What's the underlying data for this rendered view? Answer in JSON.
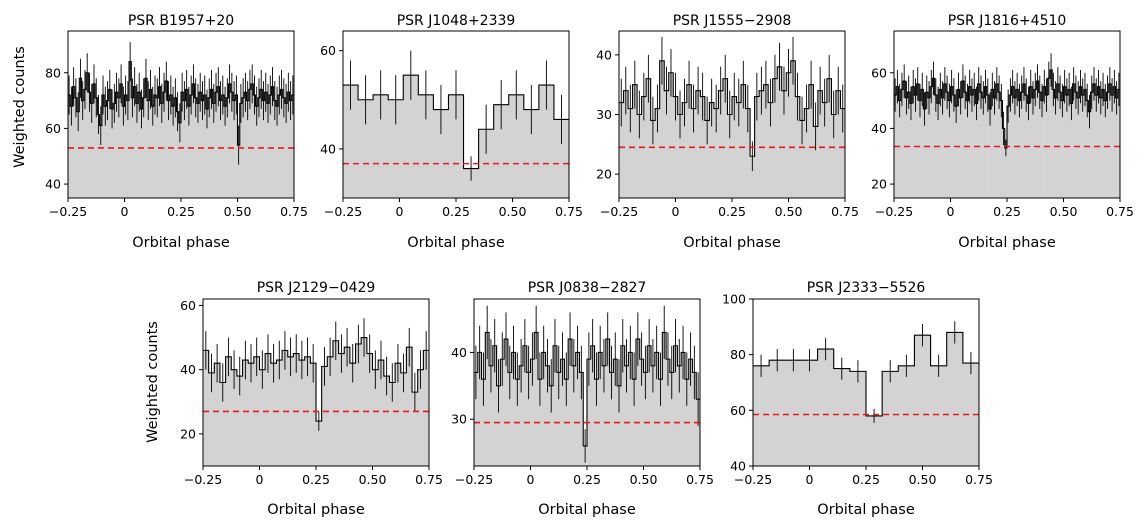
{
  "figure": {
    "ylabel_row1": "Weighted counts",
    "ylabel_row2": "Weighted counts",
    "colors": {
      "fill": "#d3d3d3",
      "step": "#000000",
      "baseline": "#e8191a"
    }
  },
  "chart_data": [
    {
      "type": "histogram",
      "title": "PSR B1957+20",
      "xlabel": "Orbital phase",
      "xlim": [
        -0.25,
        0.75
      ],
      "ylim": [
        35,
        95
      ],
      "xticks": [
        -0.25,
        0,
        0.25,
        0.5,
        0.75
      ],
      "xtick_labels": [
        "−0.25",
        "0",
        "0.25",
        "0.50",
        "0.75"
      ],
      "yticks": [
        40,
        60,
        80
      ],
      "ytick_labels": [
        "40",
        "60",
        "80"
      ],
      "baseline": 53,
      "nbins": 100,
      "values": [
        72,
        68,
        75,
        71,
        66,
        78,
        70,
        74,
        80,
        73,
        69,
        76,
        71,
        65,
        61,
        72,
        68,
        70,
        74,
        67,
        69,
        73,
        71,
        76,
        68,
        72,
        70,
        84,
        71,
        75,
        69,
        73,
        67,
        71,
        78,
        70,
        74,
        68,
        72,
        71,
        75,
        69,
        73,
        77,
        70,
        72,
        68,
        71,
        66,
        62,
        73,
        70,
        74,
        68,
        72,
        76,
        71,
        69,
        73,
        70,
        72,
        67,
        71,
        74,
        69,
        73,
        75,
        70,
        72,
        68,
        71,
        76,
        73,
        70,
        72,
        54,
        69,
        71,
        73,
        70,
        74,
        76,
        72,
        68,
        71,
        74,
        70,
        73,
        69,
        72,
        75,
        70,
        68,
        72,
        74,
        71,
        69,
        73,
        70,
        72
      ],
      "errors": [
        7,
        7,
        7,
        7,
        7,
        7,
        7,
        7,
        7,
        7,
        7,
        7,
        7,
        7,
        7,
        7,
        7,
        7,
        7,
        7,
        7,
        7,
        7,
        7,
        7,
        7,
        7,
        7,
        7,
        7,
        7,
        7,
        7,
        7,
        7,
        7,
        7,
        7,
        7,
        7,
        7,
        7,
        7,
        7,
        7,
        7,
        7,
        7,
        7,
        7,
        7,
        7,
        7,
        7,
        7,
        7,
        7,
        7,
        7,
        7,
        7,
        7,
        7,
        7,
        7,
        7,
        7,
        7,
        7,
        7,
        7,
        7,
        7,
        7,
        7,
        7,
        7,
        7,
        7,
        7,
        7,
        7,
        7,
        7,
        7,
        7,
        7,
        7,
        7,
        7,
        7,
        7,
        7,
        7,
        7,
        7,
        7,
        7,
        7,
        7
      ]
    },
    {
      "type": "histogram",
      "title": "PSR J1048+2339",
      "xlabel": "Orbital phase",
      "xlim": [
        -0.25,
        0.75
      ],
      "ylim": [
        30,
        64
      ],
      "xticks": [
        -0.25,
        0,
        0.25,
        0.5,
        0.75
      ],
      "xtick_labels": [
        "−0.25",
        "0",
        "0.25",
        "0.50",
        "0.75"
      ],
      "yticks": [
        40,
        60
      ],
      "ytick_labels": [
        "40",
        "60"
      ],
      "baseline": 37,
      "nbins": 15,
      "values": [
        53,
        50,
        51,
        50,
        55,
        51,
        48,
        51,
        36,
        44,
        49,
        51,
        48,
        53,
        46
      ],
      "errors": [
        5,
        5,
        5,
        5,
        5,
        5,
        5,
        5,
        2.5,
        5,
        5,
        5,
        5,
        5,
        5
      ]
    },
    {
      "type": "histogram",
      "title": "PSR J1555−2908",
      "xlabel": "Orbital phase",
      "xlim": [
        -0.25,
        0.75
      ],
      "ylim": [
        16,
        44
      ],
      "xticks": [
        -0.25,
        0,
        0.25,
        0.5,
        0.75
      ],
      "xtick_labels": [
        "−0.25",
        "0",
        "0.25",
        "0.50",
        "0.75"
      ],
      "yticks": [
        20,
        30,
        40
      ],
      "ytick_labels": [
        "20",
        "30",
        "40"
      ],
      "baseline": 24.5,
      "nbins": 50,
      "values": [
        32,
        34,
        31,
        35,
        30,
        33,
        36,
        29,
        31,
        39,
        34,
        37,
        33,
        30,
        32,
        35,
        31,
        34,
        33,
        29,
        32,
        31,
        34,
        36,
        30,
        33,
        32,
        35,
        31,
        23,
        33,
        34,
        35,
        32,
        36,
        38,
        34,
        37,
        39,
        33,
        29,
        31,
        35,
        28,
        34,
        32,
        36,
        30,
        34,
        31
      ],
      "errors": [
        4,
        4,
        4,
        4,
        4,
        4,
        4,
        4,
        4,
        4,
        4,
        4,
        4,
        4,
        4,
        4,
        4,
        4,
        4,
        4,
        4,
        4,
        4,
        4,
        4,
        4,
        4,
        4,
        4,
        2.5,
        4,
        4,
        4,
        4,
        4,
        4,
        4,
        4,
        4,
        4,
        4,
        4,
        4,
        4,
        4,
        4,
        4,
        4,
        4,
        4
      ]
    },
    {
      "type": "histogram",
      "title": "PSR J1816+4510",
      "xlabel": "Orbital phase",
      "xlim": [
        -0.25,
        0.75
      ],
      "ylim": [
        15,
        75
      ],
      "xticks": [
        -0.25,
        0,
        0.25,
        0.5,
        0.75
      ],
      "xtick_labels": [
        "−0.25",
        "0",
        "0.25",
        "0.50",
        "0.75"
      ],
      "yticks": [
        20,
        40,
        60
      ],
      "ytick_labels": [
        "20",
        "40",
        "60"
      ],
      "baseline": 33.5,
      "nbins": 100,
      "values": [
        52,
        55,
        50,
        54,
        57,
        51,
        53,
        49,
        55,
        52,
        56,
        50,
        54,
        47,
        53,
        51,
        55,
        58,
        52,
        49,
        54,
        51,
        56,
        53,
        50,
        55,
        52,
        48,
        54,
        51,
        57,
        53,
        50,
        55,
        52,
        54,
        49,
        56,
        53,
        51,
        55,
        52,
        47,
        54,
        51,
        56,
        53,
        50,
        40,
        33,
        48,
        52,
        55,
        51,
        54,
        50,
        53,
        56,
        52,
        49,
        55,
        51,
        54,
        57,
        53,
        50,
        55,
        52,
        58,
        61,
        54,
        51,
        56,
        53,
        50,
        55,
        52,
        54,
        49,
        56,
        53,
        51,
        55,
        52,
        54,
        50,
        46,
        53,
        56,
        52,
        55,
        51,
        54,
        50,
        53,
        56,
        52,
        55,
        51,
        54
      ],
      "errors": [
        6,
        6,
        6,
        6,
        6,
        6,
        6,
        6,
        6,
        6,
        6,
        6,
        6,
        6,
        6,
        6,
        6,
        6,
        6,
        6,
        6,
        6,
        6,
        6,
        6,
        6,
        6,
        6,
        6,
        6,
        6,
        6,
        6,
        6,
        6,
        6,
        6,
        6,
        6,
        6,
        6,
        6,
        6,
        6,
        6,
        6,
        6,
        6,
        6,
        3,
        6,
        6,
        6,
        6,
        6,
        6,
        6,
        6,
        6,
        6,
        6,
        6,
        6,
        6,
        6,
        6,
        6,
        6,
        6,
        6,
        6,
        6,
        6,
        6,
        6,
        6,
        6,
        6,
        6,
        6,
        6,
        6,
        6,
        6,
        6,
        6,
        6,
        6,
        6,
        6,
        6,
        6,
        6,
        6,
        6,
        6,
        6,
        6,
        6,
        6
      ]
    },
    {
      "type": "histogram",
      "title": "PSR J2129−0429",
      "xlabel": "Orbital phase",
      "xlim": [
        -0.25,
        0.75
      ],
      "ylim": [
        10,
        62
      ],
      "xticks": [
        -0.25,
        0,
        0.25,
        0.5,
        0.75
      ],
      "xtick_labels": [
        "−0.25",
        "0",
        "0.25",
        "0.50",
        "0.75"
      ],
      "yticks": [
        20,
        40,
        60
      ],
      "ytick_labels": [
        "20",
        "40",
        "60"
      ],
      "baseline": 27,
      "nbins": 40,
      "values": [
        46,
        39,
        42,
        36,
        44,
        40,
        38,
        43,
        42,
        44,
        40,
        45,
        42,
        43,
        46,
        44,
        45,
        43,
        44,
        42,
        24,
        41,
        44,
        49,
        45,
        47,
        42,
        48,
        50,
        45,
        40,
        43,
        38,
        36,
        42,
        39,
        47,
        33,
        40,
        46
      ],
      "errors": [
        6,
        6,
        6,
        6,
        6,
        6,
        6,
        6,
        6,
        6,
        6,
        6,
        6,
        6,
        6,
        6,
        6,
        6,
        6,
        6,
        3,
        6,
        6,
        6,
        6,
        6,
        6,
        6,
        6,
        6,
        6,
        6,
        6,
        6,
        6,
        6,
        6,
        6,
        6,
        6
      ]
    },
    {
      "type": "histogram",
      "title": "PSR J0838−2827",
      "xlabel": "Orbital phase",
      "xlim": [
        -0.25,
        0.75
      ],
      "ylim": [
        23,
        48
      ],
      "xticks": [
        -0.25,
        0,
        0.25,
        0.5,
        0.75
      ],
      "xtick_labels": [
        "−0.25",
        "0",
        "0.25",
        "0.50",
        "0.75"
      ],
      "yticks": [
        30,
        40
      ],
      "ytick_labels": [
        "30",
        "40"
      ],
      "baseline": 29.5,
      "nbins": 60,
      "values": [
        37,
        40,
        36,
        43,
        38,
        41,
        35,
        39,
        42,
        37,
        40,
        36,
        38,
        41,
        37,
        39,
        43,
        36,
        40,
        38,
        35,
        41,
        37,
        39,
        36,
        42,
        38,
        40,
        37,
        26,
        39,
        41,
        36,
        40,
        38,
        42,
        37,
        39,
        35,
        41,
        38,
        40,
        36,
        42,
        39,
        37,
        41,
        38,
        40,
        36,
        43,
        39,
        37,
        41,
        38,
        40,
        36,
        39,
        37,
        33
      ],
      "errors": [
        4,
        4,
        4,
        4,
        4,
        4,
        4,
        4,
        4,
        4,
        4,
        4,
        4,
        4,
        4,
        4,
        4,
        4,
        4,
        4,
        4,
        4,
        4,
        4,
        4,
        4,
        4,
        4,
        4,
        2.5,
        4,
        4,
        4,
        4,
        4,
        4,
        4,
        4,
        4,
        4,
        4,
        4,
        4,
        4,
        4,
        4,
        4,
        4,
        4,
        4,
        4,
        4,
        4,
        4,
        4,
        4,
        4,
        4,
        4,
        4
      ]
    },
    {
      "type": "histogram",
      "title": "PSR J2333−5526",
      "xlabel": "Orbital phase",
      "xlim": [
        -0.25,
        0.75
      ],
      "ylim": [
        40,
        100
      ],
      "xticks": [
        -0.25,
        0,
        0.25,
        0.5,
        0.75
      ],
      "xtick_labels": [
        "−0.25",
        "0",
        "0.25",
        "0.50",
        "0.75"
      ],
      "yticks": [
        40,
        60,
        80,
        100
      ],
      "ytick_labels": [
        "40",
        "60",
        "80",
        "100"
      ],
      "baseline": 58.5,
      "nbins": 14,
      "values": [
        76,
        78,
        78,
        78,
        82,
        75,
        74,
        58,
        74,
        76,
        87,
        76,
        88,
        77
      ],
      "errors": [
        4,
        4,
        4,
        4,
        4,
        4,
        4,
        2.5,
        4,
        4,
        4,
        4,
        4,
        4
      ]
    }
  ]
}
